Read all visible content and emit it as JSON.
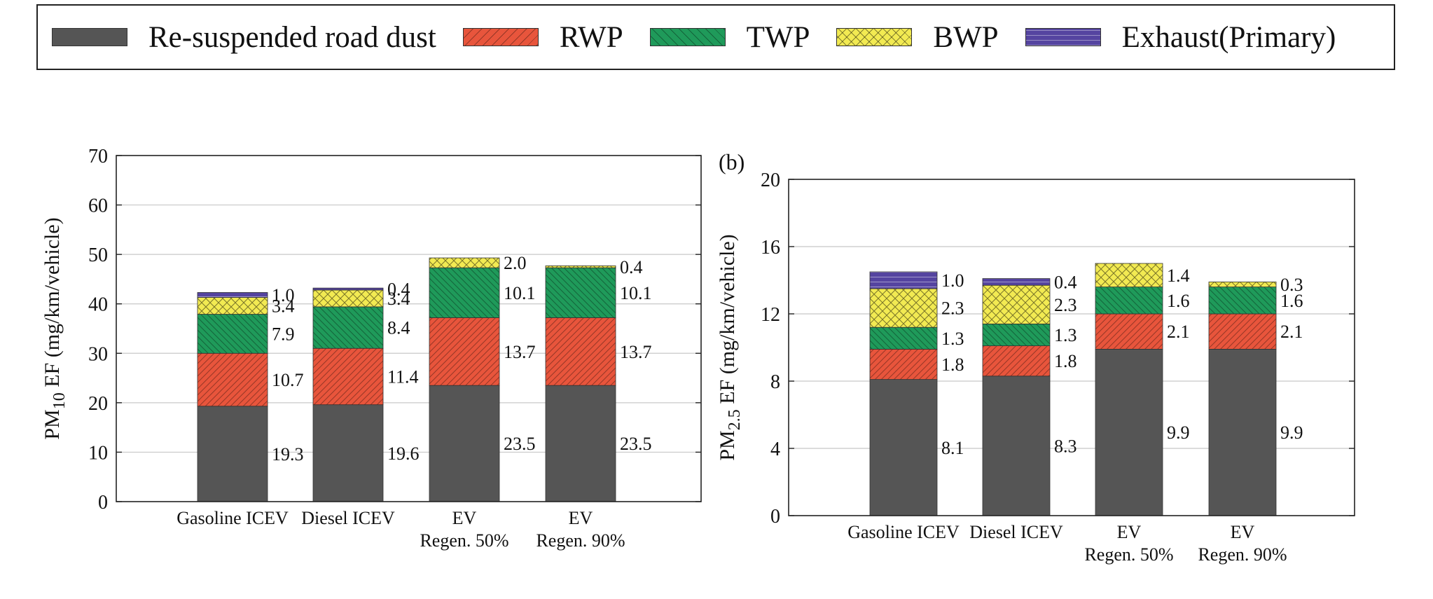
{
  "legend": [
    {
      "label": "Re-suspended road dust",
      "color": "#555555",
      "pattern": "none"
    },
    {
      "label": "RWP",
      "color": "#e8553c",
      "pattern": "diag"
    },
    {
      "label": "TWP",
      "color": "#1f9a5a",
      "pattern": "diag-rev"
    },
    {
      "label": "BWP",
      "color": "#f2ea52",
      "pattern": "cross"
    },
    {
      "label": "Exhaust(Primary)",
      "color": "#5544a0",
      "pattern": "horiz"
    }
  ],
  "chart_data": [
    {
      "type": "bar",
      "stacked": true,
      "panel_label": "",
      "ylabel": "PM10 EF (mg/km/vehicle)",
      "ylabel_main": "PM",
      "ylabel_sub": "10",
      "ylabel_rest": " EF (mg/km/vehicle)",
      "ylim": [
        0,
        70
      ],
      "yticks": [
        0,
        10,
        20,
        30,
        40,
        50,
        60,
        70
      ],
      "grid": true,
      "categories": [
        [
          "Gasoline ICEV"
        ],
        [
          "Diesel ICEV"
        ],
        [
          "EV",
          "Regen. 50%"
        ],
        [
          "EV",
          "Regen. 90%"
        ]
      ],
      "series": [
        {
          "name": "Re-suspended road dust",
          "values": [
            19.3,
            19.6,
            23.5,
            23.5
          ],
          "labels": [
            "19.3",
            "19.6",
            "23.5",
            "23.5"
          ]
        },
        {
          "name": "RWP",
          "values": [
            10.7,
            11.4,
            13.7,
            13.7
          ],
          "labels": [
            "10.7",
            "11.4",
            "13.7",
            "13.7"
          ]
        },
        {
          "name": "TWP",
          "values": [
            7.9,
            8.4,
            10.1,
            10.1
          ],
          "labels": [
            "7.9",
            "8.4",
            "10.1",
            "10.1"
          ]
        },
        {
          "name": "BWP",
          "values": [
            3.4,
            3.4,
            2.0,
            0.4
          ],
          "labels": [
            "3.4",
            "3.4",
            "2.0",
            "0.4"
          ]
        },
        {
          "name": "Exhaust(Primary)",
          "values": [
            1.0,
            0.4,
            0,
            0
          ],
          "labels": [
            "1.0",
            "0.4",
            "",
            ""
          ]
        }
      ]
    },
    {
      "type": "bar",
      "stacked": true,
      "panel_label": "(b)",
      "ylabel": "PM2.5 EF (mg/km/vehicle)",
      "ylabel_main": "PM",
      "ylabel_sub": "2.5",
      "ylabel_rest": " EF (mg/km/vehicle)",
      "ylim": [
        0,
        20
      ],
      "yticks": [
        0,
        4,
        8,
        12,
        16,
        20
      ],
      "grid": true,
      "categories": [
        [
          "Gasoline ICEV"
        ],
        [
          "Diesel ICEV"
        ],
        [
          "EV",
          "Regen. 50%"
        ],
        [
          "EV",
          "Regen. 90%"
        ]
      ],
      "series": [
        {
          "name": "Re-suspended road dust",
          "values": [
            8.1,
            8.3,
            9.9,
            9.9
          ],
          "labels": [
            "8.1",
            "8.3",
            "9.9",
            "9.9"
          ]
        },
        {
          "name": "RWP",
          "values": [
            1.8,
            1.8,
            2.1,
            2.1
          ],
          "labels": [
            "1.8",
            "1.8",
            "2.1",
            "2.1"
          ]
        },
        {
          "name": "TWP",
          "values": [
            1.3,
            1.3,
            1.6,
            1.6
          ],
          "labels": [
            "1.3",
            "1.3",
            "1.6",
            "1.6"
          ]
        },
        {
          "name": "BWP",
          "values": [
            2.3,
            2.3,
            1.4,
            0.3
          ],
          "labels": [
            "2.3",
            "2.3",
            "1.4",
            "0.3"
          ]
        },
        {
          "name": "Exhaust(Primary)",
          "values": [
            1.0,
            0.4,
            0,
            0
          ],
          "labels": [
            "1.0",
            "0.4",
            "",
            ""
          ]
        }
      ]
    }
  ]
}
